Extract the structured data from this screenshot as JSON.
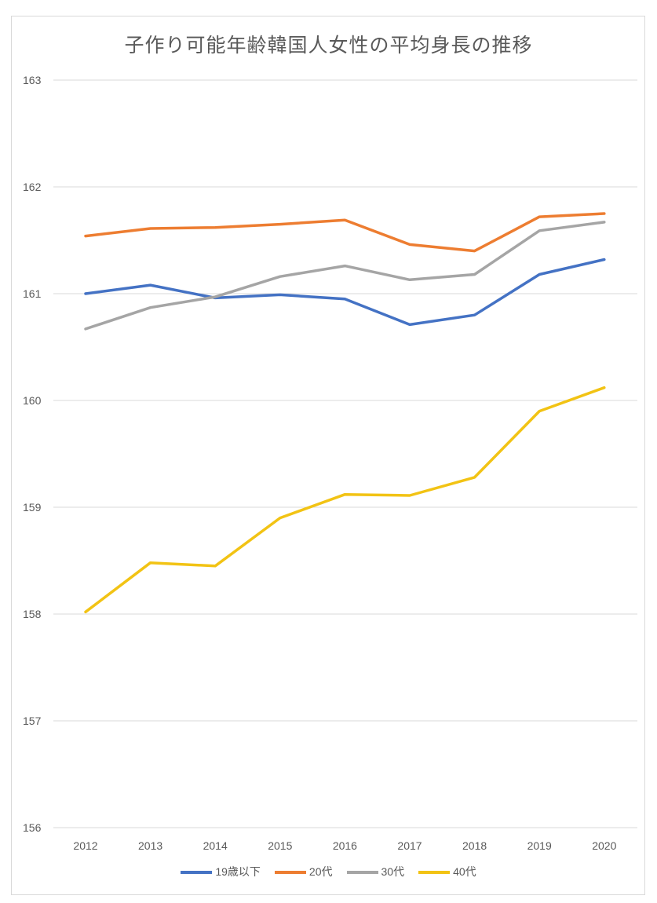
{
  "chart_data": {
    "type": "line",
    "title": "子作り可能年齢韓国人女性の平均身長の推移",
    "xlabel": "",
    "ylabel": "",
    "categories": [
      "2012",
      "2013",
      "2014",
      "2015",
      "2016",
      "2017",
      "2018",
      "2019",
      "2020"
    ],
    "ylim": [
      156,
      163
    ],
    "yticks": [
      "156",
      "157",
      "158",
      "159",
      "160",
      "161",
      "162",
      "163"
    ],
    "grid": "horizontal",
    "legend": "bottom",
    "series": [
      {
        "name": "19歳以下",
        "color": "#4472c4",
        "values": [
          161.0,
          161.08,
          160.96,
          160.99,
          160.95,
          160.71,
          160.8,
          161.18,
          161.32
        ]
      },
      {
        "name": "20代",
        "color": "#ed7d31",
        "values": [
          161.54,
          161.61,
          161.62,
          161.65,
          161.69,
          161.46,
          161.4,
          161.72,
          161.75
        ]
      },
      {
        "name": "30代",
        "color": "#a5a5a5",
        "values": [
          160.67,
          160.87,
          160.97,
          161.16,
          161.26,
          161.13,
          161.18,
          161.59,
          161.67
        ]
      },
      {
        "name": "40代",
        "color": "#f2c314",
        "values": [
          158.02,
          158.48,
          158.45,
          158.9,
          159.12,
          159.11,
          159.28,
          159.9,
          160.12
        ]
      }
    ]
  }
}
